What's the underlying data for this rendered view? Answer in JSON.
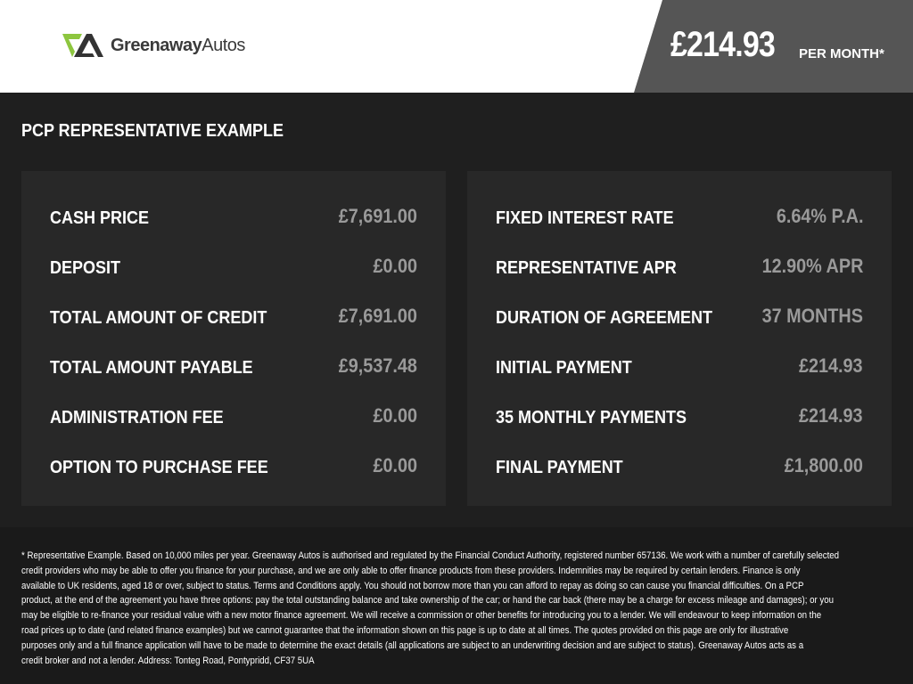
{
  "header": {
    "logo": {
      "brand_bold": "Greenaway",
      "brand_light": "Autos",
      "accent": "#8dc63f"
    },
    "price": "£214.93",
    "per_month": "PER MONTH*"
  },
  "title": "PCP REPRESENTATIVE EXAMPLE",
  "left_panel": [
    {
      "label": "CASH PRICE",
      "value": "£7,691.00"
    },
    {
      "label": "DEPOSIT",
      "value": "£0.00"
    },
    {
      "label": "TOTAL AMOUNT OF CREDIT",
      "value": "£7,691.00"
    },
    {
      "label": "TOTAL AMOUNT PAYABLE",
      "value": "£9,537.48"
    },
    {
      "label": "ADMINISTRATION FEE",
      "value": "£0.00"
    },
    {
      "label": "OPTION TO PURCHASE FEE",
      "value": "£0.00"
    }
  ],
  "right_panel": [
    {
      "label": "FIXED INTEREST RATE",
      "value": "6.64% P.A."
    },
    {
      "label": "REPRESENTATIVE APR",
      "value": "12.90% APR"
    },
    {
      "label": "DURATION OF AGREEMENT",
      "value": "37 MONTHS"
    },
    {
      "label": "INITIAL PAYMENT",
      "value": "£214.93"
    },
    {
      "label": "35 MONTHLY PAYMENTS",
      "value": "£214.93"
    },
    {
      "label": "FINAL PAYMENT",
      "value": "£1,800.00"
    }
  ],
  "footer_lines": [
    "* Representative Example. Based on 10,000 miles per year. Greenaway Autos is authorised and regulated by the Financial Conduct Authority, registered number 657136. We work with a number of carefully selected",
    "credit providers who may be able to offer you finance for your purchase, and we are only able to offer finance products from these providers. Indemnities may be required by certain lenders. Finance is only",
    "available to UK residents, aged 18 or over, subject to status. Terms and Conditions apply. You should not borrow more than you can afford to repay as doing so can cause you financial difficulties. On a PCP",
    "product, at the end of the agreement you have three options: pay the total outstanding balance and take ownership of the car; or hand the car back (there may be a charge for excess mileage and damages); or you",
    "may be eligible to re-finance your residual value with a new motor finance agreement. We will receive a commission or other benefits for introducing you to a lender. We will endeavour to keep information on the",
    "road prices up to date (and related finance examples) but we cannot guarantee that the information shown on this page is up to date at all times. The quotes provided on this page are only for illustrative",
    "purposes only and a full finance application will have to be made to determine the exact details (all applications are subject to an underwriting decision and are subject to status). Greenaway Autos acts as a",
    "credit broker and not a lender. Address: Tonteg Road, Pontypridd, CF37 5UA"
  ]
}
